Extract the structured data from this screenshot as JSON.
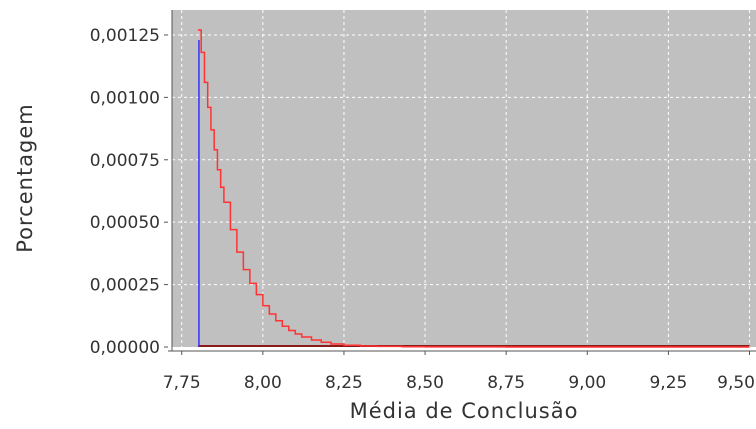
{
  "chart_data": {
    "type": "line",
    "title": "",
    "xlabel": "Média de Conclusão",
    "ylabel": "Porcentagem",
    "xlim": [
      7.72,
      9.52
    ],
    "ylim": [
      0,
      0.00135
    ],
    "x_ticks": [
      7.75,
      8.0,
      8.25,
      8.5,
      8.75,
      9.0,
      9.25,
      9.5
    ],
    "x_tick_labels": [
      "7,75",
      "8,00",
      "8,25",
      "8,50",
      "8,75",
      "9,00",
      "9,25",
      "9,50"
    ],
    "y_ticks": [
      0,
      0.00025,
      0.0005,
      0.00075,
      0.001,
      0.00125
    ],
    "y_tick_labels": [
      "0,00000",
      "0,00025",
      "0,00050",
      "0,00075",
      "0,00100",
      "0,00125"
    ],
    "grid": true,
    "colors": {
      "plot_background": "#c0c0c0",
      "grid": "#ffffff",
      "series": "#ff3333",
      "marker_line": "#3333ff",
      "baseline": "#8b1a1a",
      "axis": "#555555"
    },
    "series": [
      {
        "x": [
          7.8,
          7.81,
          7.82,
          7.83,
          7.84,
          7.85,
          7.86,
          7.87,
          7.88,
          7.9,
          7.92,
          7.94,
          7.96,
          7.98,
          8.0,
          8.02,
          8.04,
          8.06,
          8.08,
          8.1,
          8.12,
          8.15,
          8.18,
          8.21,
          8.25,
          8.3,
          8.35,
          8.43,
          8.5,
          8.75,
          9.0,
          9.25,
          9.5
        ],
        "values": [
          0.00127,
          0.00118,
          0.00106,
          0.00096,
          0.00087,
          0.00079,
          0.00071,
          0.00064,
          0.00058,
          0.00047,
          0.00038,
          0.00031,
          0.000255,
          0.00021,
          0.000165,
          0.000132,
          0.000105,
          8.3e-05,
          6.6e-05,
          5.2e-05,
          4e-05,
          2.8e-05,
          1.9e-05,
          1.2e-05,
          7e-06,
          4e-06,
          2.5e-06,
          1.2e-06,
          4e-07,
          1e-07,
          0.0,
          0.0,
          0.0
        ]
      }
    ],
    "vertical_marker": {
      "x": 7.8,
      "y_top": 0.00123
    }
  }
}
